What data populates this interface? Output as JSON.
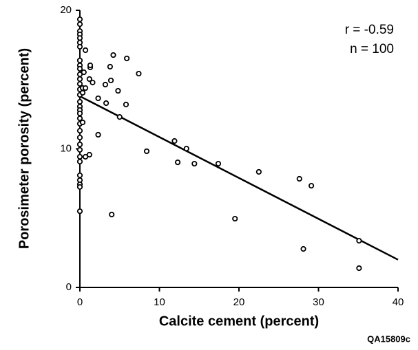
{
  "chart_data": {
    "type": "scatter",
    "x_label": "Calcite cement (percent)",
    "y_label": "Porosimeter porosity (percent)",
    "annotations": [
      "r = -0.59",
      "n = 100"
    ],
    "footer": "QA15809c",
    "xlim": [
      0,
      40
    ],
    "xticks": [
      0,
      10,
      20,
      30,
      40
    ],
    "ylim": [
      0,
      20
    ],
    "yticks": [
      0,
      10,
      20
    ],
    "color": "#000000",
    "series": [
      {
        "name": null,
        "x": [
          0,
          0,
          0,
          0,
          0,
          0,
          0,
          0,
          0,
          0,
          0,
          0,
          0,
          0,
          0,
          0,
          0,
          0,
          0,
          0,
          0,
          0,
          0,
          0,
          0,
          0,
          0,
          0,
          0,
          0,
          0,
          0,
          0.35,
          0.5,
          0.7,
          0.35,
          0.35,
          0.7,
          1.2,
          1.3,
          1.3,
          1.2,
          1.6,
          0.7,
          2.3,
          2.3,
          3.2,
          3.3,
          3.8,
          3.9,
          4.2,
          4.0,
          4.8,
          5.8,
          5.9,
          7.4,
          5.0,
          8.4,
          11.9,
          12.3,
          13.4,
          14.4,
          17.4,
          19.5,
          22.5,
          27.6,
          28.1,
          29.1,
          35.1,
          35.1
        ],
        "values": [
          19.35,
          19.0,
          18.5,
          18.26,
          18.0,
          17.67,
          17.37,
          16.38,
          16.03,
          15.78,
          15.38,
          15.04,
          14.69,
          14.29,
          13.9,
          13.4,
          13.05,
          12.8,
          12.56,
          12.2,
          11.81,
          11.31,
          10.82,
          10.32,
          9.93,
          9.43,
          9.08,
          8.09,
          7.74,
          7.44,
          7.25,
          5.5,
          14.39,
          15.53,
          17.12,
          14.05,
          11.91,
          9.43,
          9.58,
          15.88,
          16.03,
          15.04,
          14.79,
          14.39,
          13.65,
          11.02,
          14.64,
          13.3,
          15.93,
          14.94,
          16.77,
          5.26,
          14.19,
          13.2,
          16.53,
          15.43,
          12.3,
          9.83,
          10.57,
          9.03,
          10.02,
          8.93,
          8.93,
          4.96,
          8.34,
          7.84,
          2.78,
          7.34,
          3.37,
          1.39
        ]
      }
    ],
    "trend": {
      "x": [
        0,
        40
      ],
      "values": [
        13.8,
        2.0
      ]
    }
  }
}
